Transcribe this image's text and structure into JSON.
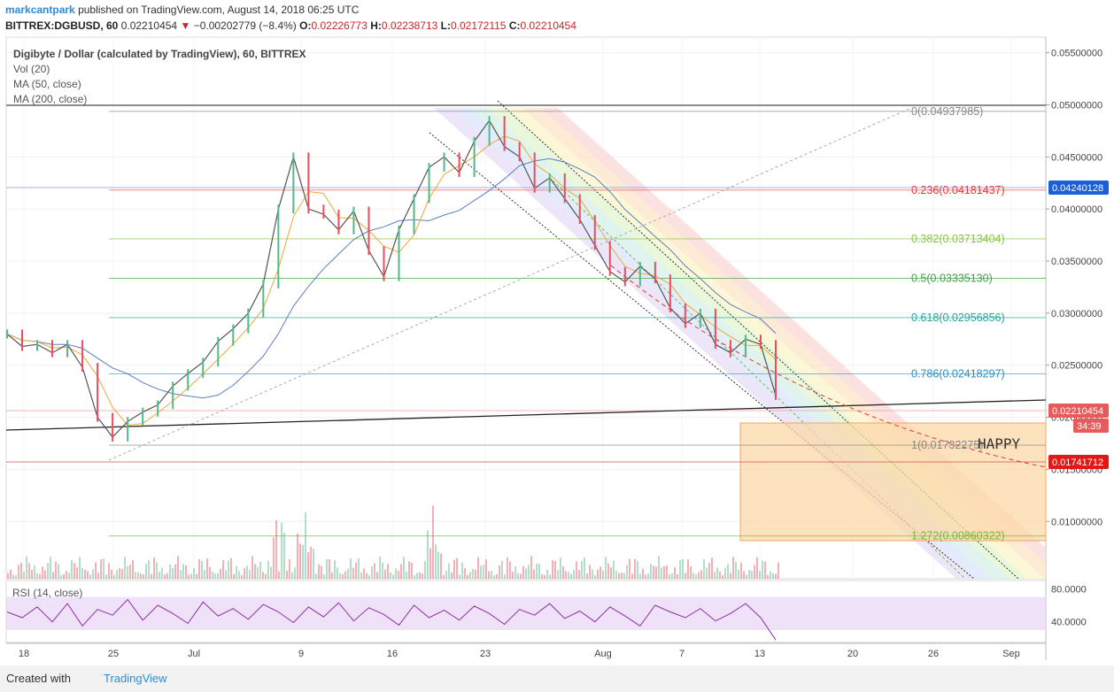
{
  "header": {
    "author": "markcantpark",
    "published_text": "published on TradingView.com, August 14, 2018 06:25 UTC",
    "symbol": "BITTREX:DGBUSD, 60",
    "last_price": "0.02210454",
    "change_arrow": "▼",
    "change": "−0.00202779 (−8.4%)",
    "ohlc": [
      {
        "k": "O:",
        "v": "0.02226773"
      },
      {
        "k": "H:",
        "v": "0.02238713"
      },
      {
        "k": "L:",
        "v": "0.02172115"
      },
      {
        "k": "C:",
        "v": "0.02210454"
      }
    ]
  },
  "legend": {
    "title": "Digibyte / Dollar (calculated by TradingView), 60, BITTREX",
    "items": [
      "Vol (20)",
      "MA (50, close)",
      "MA (200, close)"
    ]
  },
  "colors": {
    "candle_up": "#53b987",
    "candle_down": "#eb4d5c",
    "ma50": "#f4a53a",
    "ma200": "#5b7fc2",
    "rsi": "#8e2fa8",
    "price_label_bg": "#e95a5a",
    "blue_label_bg": "#1a5fd6",
    "target_box": "#fcd8a8"
  },
  "chart_data": [
    {
      "type": "line",
      "title": "Digibyte / Dollar (calculated by TradingView), 60, BITTREX",
      "series": [
        {
          "name": "Digibyte / Dollar",
          "values": [
            0.028,
            0.0268,
            0.027,
            0.0262,
            0.027,
            0.0248,
            0.02,
            0.0181,
            0.0196,
            0.0205,
            0.0212,
            0.023,
            0.0242,
            0.0253,
            0.0273,
            0.0285,
            0.03,
            0.0328,
            0.04,
            0.045,
            0.04,
            0.0395,
            0.038,
            0.0398,
            0.036,
            0.0335,
            0.038,
            0.041,
            0.044,
            0.045,
            0.0435,
            0.0465,
            0.0485,
            0.046,
            0.045,
            0.042,
            0.043,
            0.041,
            0.039,
            0.0365,
            0.034,
            0.033,
            0.0345,
            0.0333,
            0.0305,
            0.029,
            0.03,
            0.027,
            0.0262,
            0.0275,
            0.027,
            0.0221
          ]
        },
        {
          "name": "MA (50, close)"
        },
        {
          "name": "MA (200, close)"
        }
      ],
      "y_axis": {
        "ticks": [
          "0.05500000",
          "0.05000000",
          "0.04500000",
          "0.04000000",
          "0.03500000",
          "0.03000000",
          "0.02500000",
          "0.02000000",
          "0.01500000",
          "0.01000000"
        ],
        "range": [
          0.0045,
          0.0565
        ]
      },
      "x_axis": {
        "ticks": [
          "18",
          "25",
          "Jul",
          "9",
          "16",
          "23",
          "Aug",
          "7",
          "13",
          "20",
          "26",
          "Sep"
        ]
      },
      "price_labels": [
        {
          "value": "0.04240128",
          "style": "blue"
        },
        {
          "value": "0.02210454",
          "style": "red"
        },
        {
          "value": "34:39",
          "style": "red"
        },
        {
          "value": "0.01741712",
          "style": "darkred"
        }
      ],
      "fib_levels": [
        {
          "label": "0(0.04937985)",
          "value": 0.04937985,
          "color": "#888888"
        },
        {
          "label": "0.236(0.04181437)",
          "value": 0.04181437,
          "color": "#e53935"
        },
        {
          "label": "0.382(0.03713404)",
          "value": 0.03713404,
          "color": "#8bc34a"
        },
        {
          "label": "0.5(0.03335130)",
          "value": 0.0333513,
          "color": "#43a047"
        },
        {
          "label": "0.618(0.02956856)",
          "value": 0.02956856,
          "color": "#26a69a"
        },
        {
          "label": "0.786(0.02418297)",
          "value": 0.02418297,
          "color": "#2a8fc9"
        },
        {
          "label": "1(0.01732275)",
          "value": 0.01732275,
          "color": "#888888"
        },
        {
          "label": "1.272(0.00860322)",
          "value": 0.00860322,
          "color": "#7cb342"
        }
      ],
      "annotations": [
        "HAPPY"
      ]
    },
    {
      "type": "line",
      "title": "RSI (14, close)",
      "y_axis": {
        "ticks": [
          "80.0000",
          "40.0000"
        ],
        "range": [
          15,
          90
        ]
      },
      "series": [
        {
          "name": "RSI (14, close)",
          "values": [
            52,
            45,
            58,
            40,
            62,
            35,
            55,
            48,
            67,
            42,
            60,
            50,
            38,
            64,
            47,
            56,
            43,
            61,
            52,
            39,
            58,
            46,
            63,
            41,
            57,
            49,
            36,
            60,
            45,
            54,
            42,
            59,
            50,
            37,
            55,
            48,
            62,
            44,
            53,
            40,
            58,
            47,
            35,
            60,
            52,
            45,
            56,
            41,
            50,
            62,
            45,
            18
          ]
        }
      ]
    }
  ]
}
